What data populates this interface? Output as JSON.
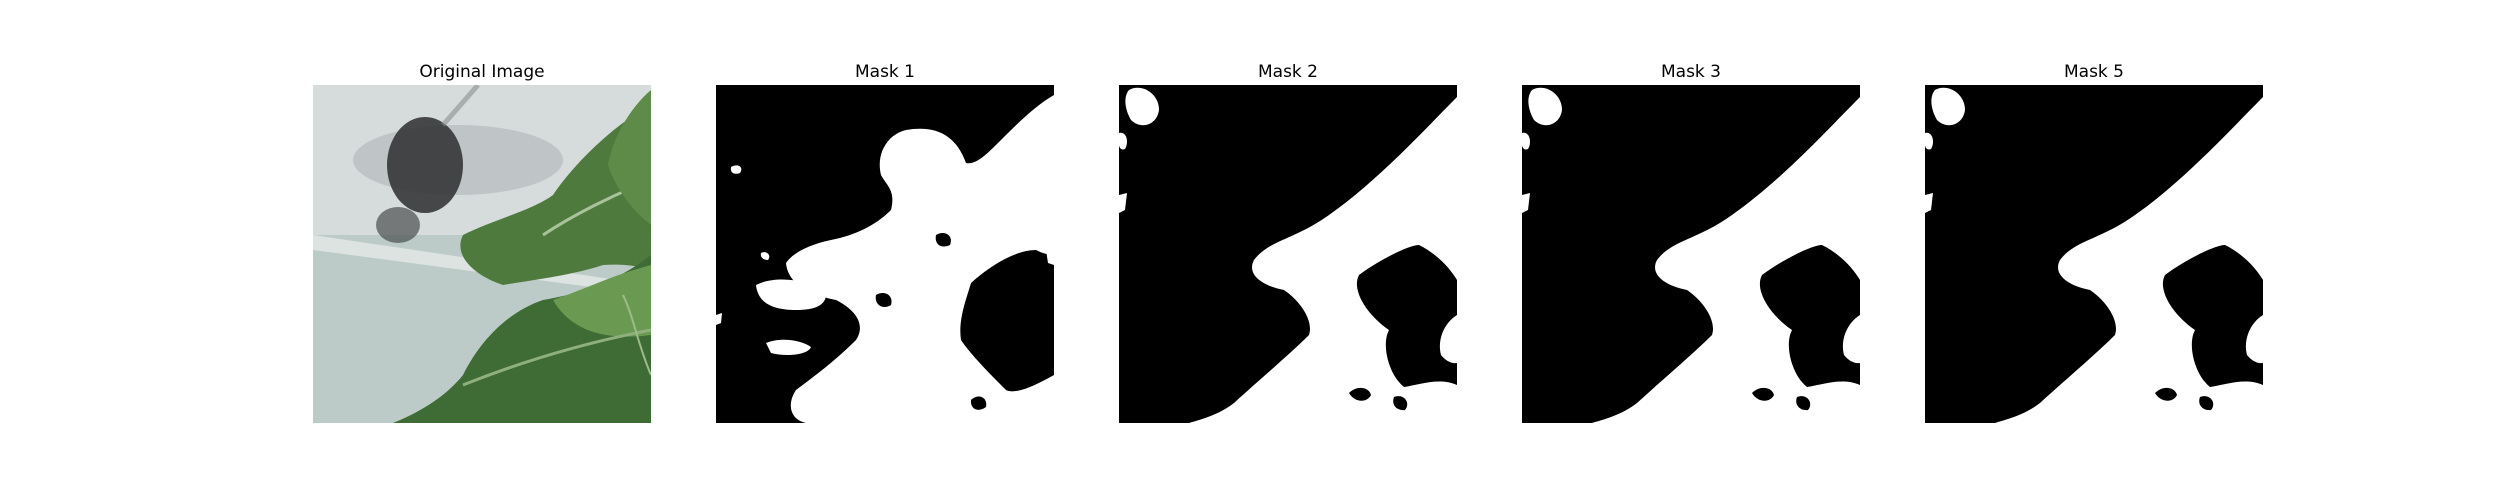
{
  "panels": [
    {
      "title": "Original Image"
    },
    {
      "title": "Mask 1"
    },
    {
      "title": "Mask 2"
    },
    {
      "title": "Mask 3"
    },
    {
      "title": "Mask 5"
    }
  ],
  "colors": {
    "mask_foreground": "#ffffff",
    "mask_background": "#000000",
    "leaf_dark": "#3f6b35",
    "leaf_light": "#6a9a52",
    "background_gray": "#c9d6d3"
  }
}
